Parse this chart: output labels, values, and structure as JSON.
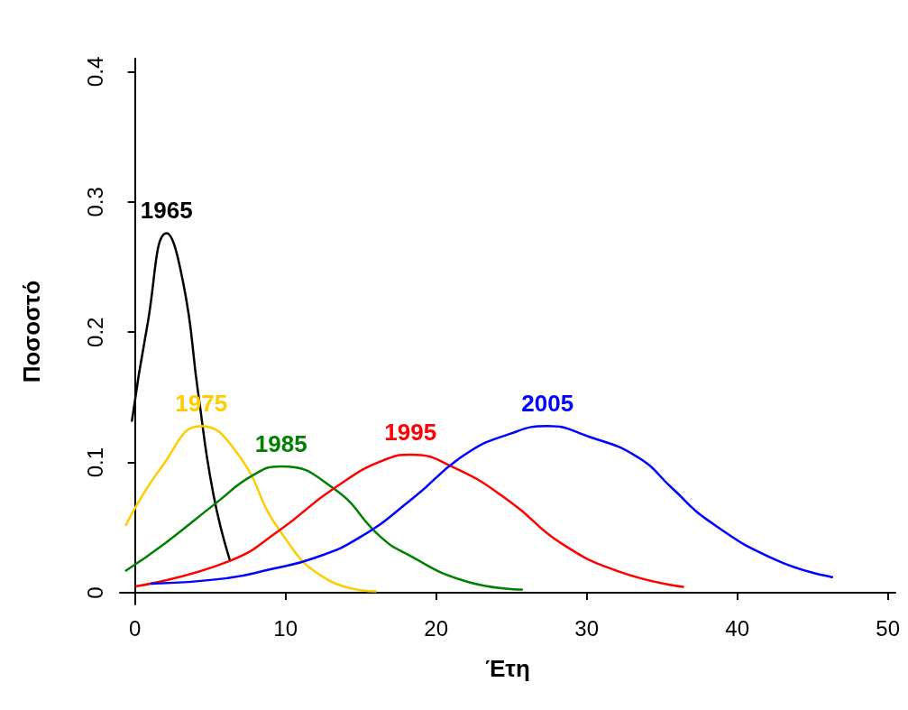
{
  "chart_data": {
    "type": "line",
    "xlabel": "Έτη",
    "ylabel": "Ποσοστό",
    "xlim": [
      -1,
      50.5
    ],
    "ylim": [
      -0.009,
      0.41
    ],
    "xticks": [
      0,
      10,
      20,
      30,
      40,
      50
    ],
    "yticks": [
      0,
      0.1,
      0.2,
      0.3,
      0.4
    ],
    "grid": false,
    "legend": false,
    "marker": "none",
    "line_style": "solid",
    "series": [
      {
        "name": "1965",
        "color": "#000000",
        "x": [
          -0.2,
          0.8,
          2.1,
          3.2,
          4.2,
          5.2,
          6.3
        ],
        "values": [
          0.132,
          0.204,
          0.276,
          0.238,
          0.153,
          0.076,
          0.025
        ]
      },
      {
        "name": "1975",
        "color": "#ffcc00",
        "x": [
          -0.6,
          1.8,
          4.4,
          6.8,
          9.6,
          12.8,
          16.0
        ],
        "values": [
          0.052,
          0.097,
          0.128,
          0.107,
          0.048,
          0.01,
          0.001
        ]
      },
      {
        "name": "1985",
        "color": "#008000",
        "x": [
          -0.6,
          2.0,
          5.4,
          7.8,
          9.7,
          13.2,
          16.3,
          18.0,
          21.9,
          25.7
        ],
        "values": [
          0.017,
          0.038,
          0.069,
          0.09,
          0.097,
          0.08,
          0.043,
          0.03,
          0.009,
          0.0024
        ]
      },
      {
        "name": "1995",
        "color": "#ff0000",
        "x": [
          0.1,
          6.2,
          9.6,
          13.2,
          16.8,
          18.3,
          21.2,
          24.9,
          28.3,
          32.2,
          36.4
        ],
        "values": [
          0.005,
          0.024,
          0.048,
          0.08,
          0.103,
          0.106,
          0.096,
          0.07,
          0.038,
          0.016,
          0.0045
        ]
      },
      {
        "name": "2005",
        "color": "#0000ff",
        "x": [
          1.1,
          6.0,
          9.0,
          12.0,
          15.0,
          18.4,
          21.9,
          24.9,
          27.4,
          30.1,
          33.4,
          35.7,
          38.0,
          42.6,
          46.3
        ],
        "values": [
          0.007,
          0.011,
          0.018,
          0.027,
          0.043,
          0.072,
          0.106,
          0.122,
          0.128,
          0.12,
          0.104,
          0.08,
          0.056,
          0.025,
          0.012
        ]
      }
    ]
  }
}
